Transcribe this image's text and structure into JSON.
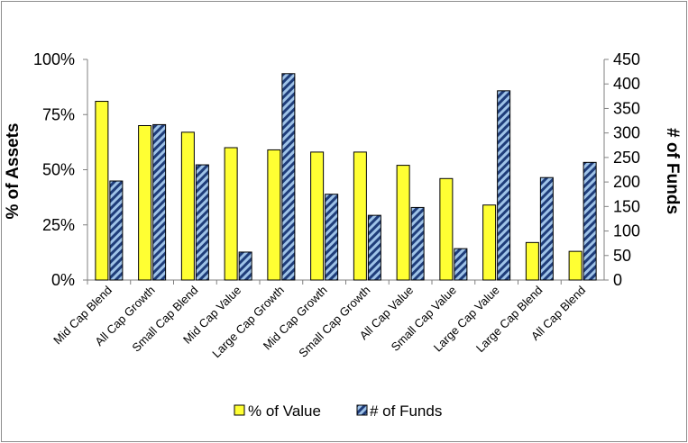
{
  "chart_data": {
    "type": "bar",
    "categories": [
      "Mid Cap Blend",
      "All Cap Growth",
      "Small Cap Blend",
      "Mid Cap Value",
      "Large Cap Growth",
      "Mid Cap Growth",
      "Small Cap Growth",
      "All Cap Value",
      "Small Cap Value",
      "Large Cap Value",
      "Large Cap Blend",
      "All Cap Blend"
    ],
    "series": [
      {
        "name": "% of Value",
        "axis": "left",
        "color": "#ffff33",
        "values": [
          0.81,
          0.7,
          0.67,
          0.6,
          0.59,
          0.58,
          0.58,
          0.52,
          0.46,
          0.34,
          0.17,
          0.13
        ]
      },
      {
        "name": "# of Funds",
        "axis": "right",
        "color": "#1f3d7a",
        "pattern_color": "#9fc3e8",
        "values": [
          202,
          317,
          235,
          57,
          421,
          175,
          132,
          148,
          64,
          386,
          209,
          240
        ]
      }
    ],
    "ylabel": "% of Assets",
    "ylabel_right": "# of Funds",
    "ylim": [
      0,
      1
    ],
    "ylim_right": [
      0,
      450
    ],
    "yticks": [
      "0%",
      "25%",
      "50%",
      "75%",
      "100%"
    ],
    "yticks_right": [
      "0",
      "50",
      "100",
      "150",
      "200",
      "250",
      "300",
      "350",
      "400",
      "450"
    ],
    "legend_position": "bottom",
    "grid": false
  }
}
